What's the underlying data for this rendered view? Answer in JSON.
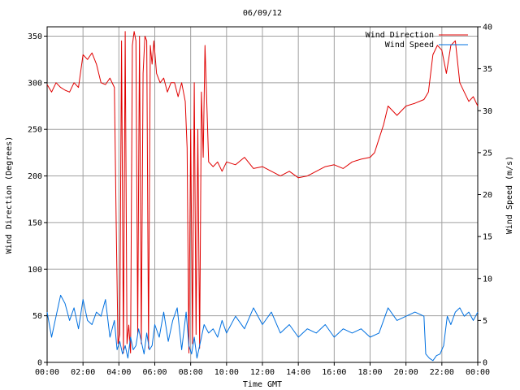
{
  "chart_data": {
    "type": "line",
    "title": "06/09/12",
    "xlabel": "Time GMT",
    "ylabel_left": "Wind Direction (Degrees)",
    "ylabel_right": "Wind Speed (m/s)",
    "x_ticks": [
      "00:00",
      "02:00",
      "04:00",
      "06:00",
      "08:00",
      "10:00",
      "12:00",
      "14:00",
      "16:00",
      "18:00",
      "20:00",
      "22:00",
      "00:00"
    ],
    "x_range_hours": [
      0,
      24
    ],
    "y_left_range": [
      0,
      360
    ],
    "y_left_ticks": [
      0,
      50,
      100,
      150,
      200,
      250,
      300,
      350
    ],
    "y_right_range": [
      0,
      40
    ],
    "y_right_ticks": [
      0,
      5,
      10,
      15,
      20,
      25,
      30,
      35,
      40
    ],
    "grid": true,
    "legend_position": "top-right",
    "series": [
      {
        "name": "Wind Direction",
        "axis": "left",
        "color": "#e00000",
        "x_hours": [
          0.0,
          0.25,
          0.5,
          0.75,
          1.0,
          1.25,
          1.5,
          1.75,
          2.0,
          2.25,
          2.5,
          2.75,
          3.0,
          3.25,
          3.5,
          3.75,
          3.85,
          3.95,
          4.05,
          4.15,
          4.25,
          4.35,
          4.45,
          4.55,
          4.65,
          4.75,
          4.85,
          4.95,
          5.05,
          5.15,
          5.25,
          5.35,
          5.45,
          5.55,
          5.65,
          5.75,
          5.85,
          5.95,
          6.1,
          6.3,
          6.5,
          6.7,
          6.9,
          7.1,
          7.3,
          7.5,
          7.7,
          7.8,
          7.9,
          8.0,
          8.1,
          8.2,
          8.3,
          8.4,
          8.5,
          8.6,
          8.7,
          8.8,
          9.0,
          9.25,
          9.5,
          9.75,
          10.0,
          10.5,
          11.0,
          11.5,
          12.0,
          12.5,
          13.0,
          13.5,
          14.0,
          14.5,
          15.0,
          15.5,
          16.0,
          16.5,
          17.0,
          17.5,
          18.0,
          18.25,
          18.5,
          18.75,
          19.0,
          19.5,
          20.0,
          20.5,
          21.0,
          21.25,
          21.5,
          21.75,
          22.0,
          22.25,
          22.5,
          22.75,
          23.0,
          23.25,
          23.5,
          23.75,
          24.0
        ],
        "values": [
          298,
          290,
          300,
          295,
          292,
          290,
          300,
          295,
          330,
          325,
          332,
          320,
          300,
          298,
          305,
          295,
          150,
          20,
          30,
          345,
          10,
          355,
          20,
          40,
          10,
          340,
          355,
          345,
          30,
          350,
          20,
          310,
          350,
          345,
          15,
          340,
          320,
          345,
          310,
          300,
          305,
          290,
          300,
          300,
          285,
          300,
          280,
          230,
          10,
          250,
          20,
          300,
          30,
          250,
          15,
          290,
          220,
          340,
          215,
          210,
          215,
          205,
          215,
          212,
          220,
          208,
          210,
          205,
          200,
          205,
          198,
          200,
          205,
          210,
          212,
          208,
          215,
          218,
          220,
          225,
          240,
          255,
          275,
          265,
          275,
          278,
          282,
          290,
          330,
          340,
          335,
          310,
          340,
          345,
          300,
          290,
          280,
          285,
          275
        ]
      },
      {
        "name": "Wind Speed",
        "axis": "right",
        "color": "#0070e0",
        "x_hours": [
          0.0,
          0.25,
          0.5,
          0.75,
          1.0,
          1.25,
          1.5,
          1.75,
          2.0,
          2.25,
          2.5,
          2.75,
          3.0,
          3.25,
          3.5,
          3.75,
          3.9,
          4.05,
          4.2,
          4.35,
          4.5,
          4.65,
          4.8,
          4.95,
          5.1,
          5.25,
          5.4,
          5.55,
          5.7,
          5.85,
          6.0,
          6.25,
          6.5,
          6.75,
          7.0,
          7.25,
          7.5,
          7.75,
          7.9,
          8.05,
          8.2,
          8.35,
          8.5,
          8.75,
          9.0,
          9.25,
          9.5,
          9.75,
          10.0,
          10.5,
          11.0,
          11.5,
          12.0,
          12.5,
          13.0,
          13.5,
          14.0,
          14.5,
          15.0,
          15.5,
          16.0,
          16.5,
          17.0,
          17.5,
          18.0,
          18.5,
          19.0,
          19.5,
          20.0,
          20.5,
          21.0,
          21.1,
          21.3,
          21.5,
          21.7,
          21.9,
          22.1,
          22.3,
          22.5,
          22.75,
          23.0,
          23.25,
          23.5,
          23.75,
          24.0
        ],
        "values": [
          6.0,
          3.0,
          5.5,
          8.0,
          7.0,
          5.0,
          6.5,
          4.0,
          7.5,
          5.0,
          4.5,
          6.0,
          5.5,
          7.5,
          3.0,
          5.0,
          1.5,
          2.5,
          1.0,
          2.0,
          0.5,
          3.0,
          1.5,
          2.0,
          4.0,
          2.5,
          1.0,
          3.5,
          1.5,
          2.0,
          4.5,
          3.0,
          6.0,
          2.5,
          5.0,
          6.5,
          1.5,
          6.0,
          2.0,
          1.0,
          3.0,
          0.5,
          2.0,
          4.5,
          3.5,
          4.0,
          3.0,
          5.0,
          3.5,
          5.5,
          4.0,
          6.5,
          4.5,
          6.0,
          3.5,
          4.5,
          3.0,
          4.0,
          3.5,
          4.5,
          3.0,
          4.0,
          3.5,
          4.0,
          3.0,
          3.5,
          6.5,
          5.0,
          5.5,
          6.0,
          5.5,
          1.0,
          0.5,
          0.2,
          0.8,
          1.0,
          2.0,
          5.5,
          4.5,
          6.0,
          6.5,
          5.5,
          6.0,
          5.0,
          6.0
        ]
      }
    ]
  }
}
